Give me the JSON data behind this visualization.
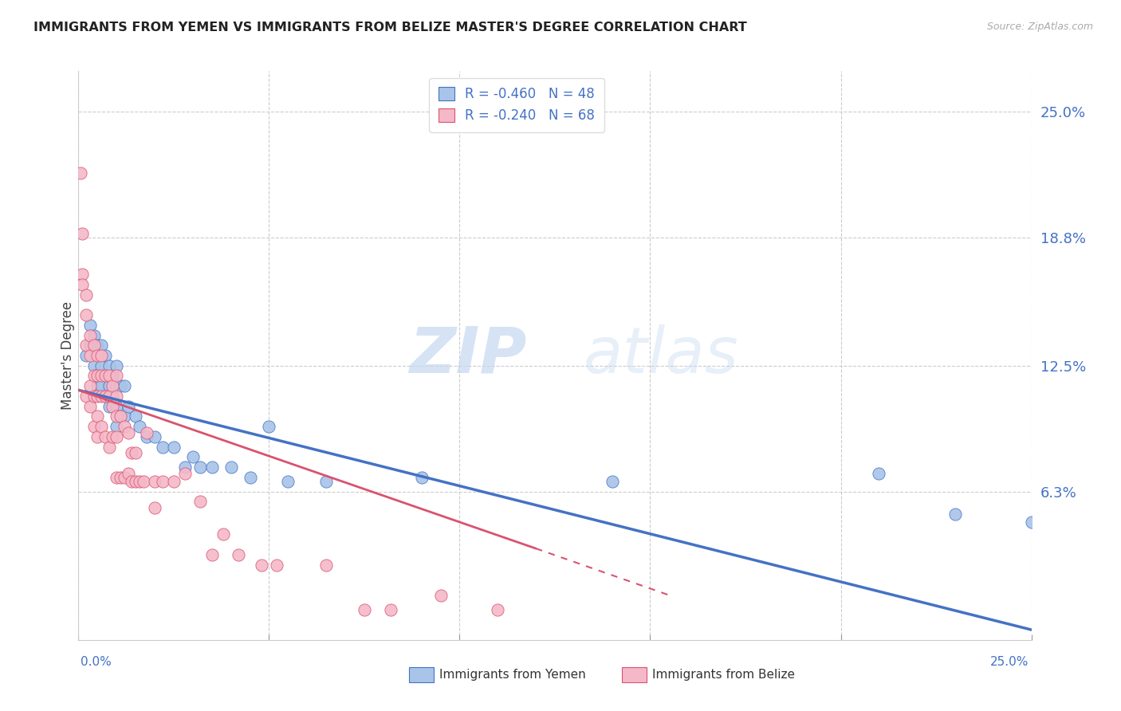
{
  "title": "IMMIGRANTS FROM YEMEN VS IMMIGRANTS FROM BELIZE MASTER'S DEGREE CORRELATION CHART",
  "source": "Source: ZipAtlas.com",
  "ylabel": "Master's Degree",
  "ytick_values": [
    0.063,
    0.125,
    0.188,
    0.25
  ],
  "ytick_labels": [
    "6.3%",
    "12.5%",
    "18.8%",
    "25.0%"
  ],
  "xlim": [
    0.0,
    0.25
  ],
  "ylim": [
    -0.01,
    0.27
  ],
  "color_yemen": "#a8c4e8",
  "color_belize": "#f4b8c8",
  "color_trend_yemen": "#4472c4",
  "color_trend_belize": "#d9536f",
  "watermark_zip": "ZIP",
  "watermark_atlas": "atlas",
  "legend_label_yemen": "Immigrants from Yemen",
  "legend_label_belize": "Immigrants from Belize",
  "legend_r1": "R = -0.460",
  "legend_n1": "N = 48",
  "legend_r2": "R = -0.240",
  "legend_n2": "N = 68",
  "yemen_x": [
    0.002,
    0.003,
    0.003,
    0.004,
    0.004,
    0.005,
    0.005,
    0.005,
    0.006,
    0.006,
    0.006,
    0.007,
    0.007,
    0.007,
    0.008,
    0.008,
    0.008,
    0.009,
    0.009,
    0.01,
    0.01,
    0.01,
    0.01,
    0.011,
    0.011,
    0.012,
    0.012,
    0.013,
    0.015,
    0.016,
    0.018,
    0.02,
    0.022,
    0.025,
    0.028,
    0.03,
    0.032,
    0.035,
    0.04,
    0.045,
    0.05,
    0.055,
    0.065,
    0.09,
    0.14,
    0.21,
    0.23,
    0.25
  ],
  "yemen_y": [
    0.13,
    0.145,
    0.135,
    0.14,
    0.125,
    0.135,
    0.12,
    0.115,
    0.135,
    0.125,
    0.115,
    0.13,
    0.12,
    0.11,
    0.125,
    0.115,
    0.105,
    0.12,
    0.11,
    0.125,
    0.115,
    0.105,
    0.095,
    0.115,
    0.1,
    0.115,
    0.1,
    0.105,
    0.1,
    0.095,
    0.09,
    0.09,
    0.085,
    0.085,
    0.075,
    0.08,
    0.075,
    0.075,
    0.075,
    0.07,
    0.095,
    0.068,
    0.068,
    0.07,
    0.068,
    0.072,
    0.052,
    0.048
  ],
  "belize_x": [
    0.0005,
    0.001,
    0.001,
    0.001,
    0.002,
    0.002,
    0.002,
    0.002,
    0.003,
    0.003,
    0.003,
    0.003,
    0.004,
    0.004,
    0.004,
    0.004,
    0.005,
    0.005,
    0.005,
    0.005,
    0.005,
    0.006,
    0.006,
    0.006,
    0.006,
    0.007,
    0.007,
    0.007,
    0.008,
    0.008,
    0.008,
    0.009,
    0.009,
    0.009,
    0.01,
    0.01,
    0.01,
    0.01,
    0.01,
    0.011,
    0.011,
    0.012,
    0.012,
    0.013,
    0.013,
    0.014,
    0.014,
    0.015,
    0.015,
    0.016,
    0.017,
    0.018,
    0.02,
    0.02,
    0.022,
    0.025,
    0.028,
    0.032,
    0.035,
    0.038,
    0.042,
    0.048,
    0.052,
    0.065,
    0.075,
    0.082,
    0.095,
    0.11
  ],
  "belize_y": [
    0.22,
    0.19,
    0.17,
    0.165,
    0.16,
    0.15,
    0.135,
    0.11,
    0.14,
    0.13,
    0.115,
    0.105,
    0.135,
    0.12,
    0.11,
    0.095,
    0.13,
    0.12,
    0.11,
    0.1,
    0.09,
    0.13,
    0.12,
    0.11,
    0.095,
    0.12,
    0.11,
    0.09,
    0.12,
    0.11,
    0.085,
    0.115,
    0.105,
    0.09,
    0.12,
    0.11,
    0.1,
    0.09,
    0.07,
    0.1,
    0.07,
    0.095,
    0.07,
    0.092,
    0.072,
    0.082,
    0.068,
    0.082,
    0.068,
    0.068,
    0.068,
    0.092,
    0.068,
    0.055,
    0.068,
    0.068,
    0.072,
    0.058,
    0.032,
    0.042,
    0.032,
    0.027,
    0.027,
    0.027,
    0.005,
    0.005,
    0.012,
    0.005
  ],
  "trend_yemen_x0": 0.0,
  "trend_yemen_x1": 0.25,
  "trend_yemen_y0": 0.113,
  "trend_yemen_y1": -0.005,
  "trend_belize_x0": 0.0,
  "trend_belize_x1": 0.12,
  "trend_belize_y0": 0.113,
  "trend_belize_y1": 0.035,
  "trend_belize_dashed_x0": 0.12,
  "trend_belize_dashed_x1": 0.155,
  "trend_belize_dashed_y0": 0.035,
  "trend_belize_dashed_y1": 0.012
}
